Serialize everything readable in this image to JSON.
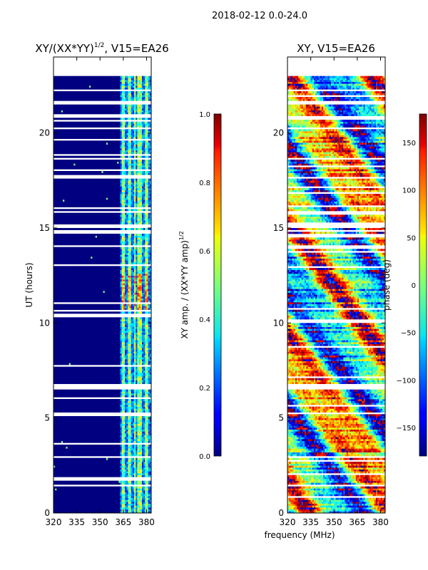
{
  "chart_data": {
    "type": "heatmap",
    "title": "2018-02-12 0.0-24.0",
    "xlabel": "frequency (MHz)",
    "panels": [
      {
        "id": "amp",
        "title": "XY/(XX*YY)^1/2, V15=EA26",
        "title_main": "XY/(XX*YY)",
        "title_sup": "1/2",
        "title_rest": ", V15=EA26",
        "xlim": [
          320,
          383
        ],
        "ylim": [
          0,
          24
        ],
        "xticks": [
          320,
          335,
          350,
          365,
          380
        ],
        "yticks": [
          0,
          5,
          10,
          15,
          20
        ],
        "ylabel": "UT (hours)",
        "data_time_range": [
          0,
          23
        ],
        "colorbar": {
          "label": "XY amp. / (XX*YY amp)^1/2",
          "label_main": "XY amp. / (XX*YY amp)",
          "label_sup": "1/2",
          "range": [
            0.0,
            1.0
          ],
          "ticks": [
            0.0,
            0.2,
            0.4,
            0.6,
            0.8,
            1.0
          ],
          "tick_labels": [
            "0.0",
            "0.2",
            "0.4",
            "0.6",
            "0.8",
            "1.0"
          ],
          "colormap": "jet"
        }
      },
      {
        "id": "phase",
        "title": "XY, V15=EA26",
        "xlim": [
          320,
          383
        ],
        "ylim": [
          0,
          24
        ],
        "xticks": [
          320,
          335,
          350,
          365,
          380
        ],
        "yticks": [
          0,
          5,
          10,
          15,
          20
        ],
        "data_time_range": [
          0,
          23
        ],
        "colorbar": {
          "label": "phase (deg)",
          "range": [
            -180,
            180
          ],
          "ticks": [
            -150,
            -100,
            -50,
            0,
            50,
            100,
            150
          ],
          "tick_labels": [
            "−150",
            "−100",
            "−50",
            "0",
            "50",
            "100",
            "150"
          ],
          "colormap": "jet"
        }
      }
    ],
    "flagged_time_gaps_hours": [
      [
        1.4,
        1.5
      ],
      [
        2.9,
        3.0
      ],
      [
        5.1,
        5.2
      ],
      [
        6.4,
        6.7
      ],
      [
        13.9,
        14.0
      ],
      [
        14.9,
        15.1
      ],
      [
        15.7,
        15.8
      ],
      [
        17.5,
        17.6
      ],
      [
        20.8,
        20.9
      ],
      [
        21.5,
        21.7
      ]
    ],
    "amp_active_channels_mhz": [
      363,
      383
    ],
    "amp_bright_bands_mhz": [
      [
        364,
        366
      ],
      [
        368,
        370
      ],
      [
        372,
        373
      ],
      [
        374,
        377
      ],
      [
        379,
        381
      ]
    ]
  }
}
